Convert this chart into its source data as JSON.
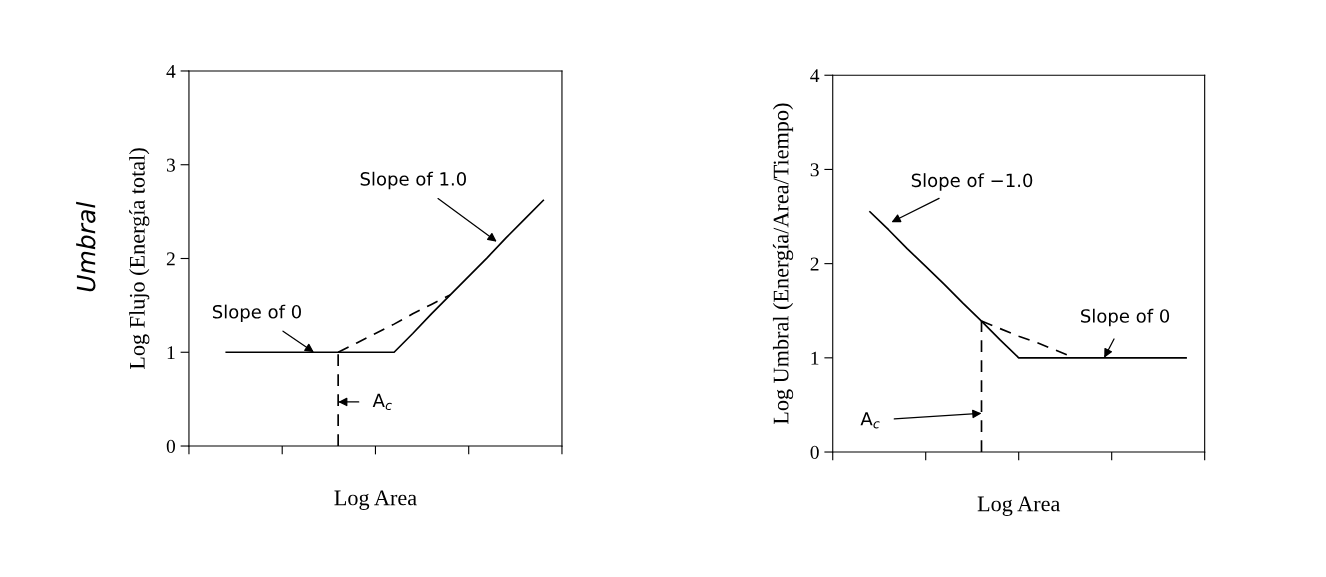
{
  "chart_data": [
    {
      "type": "line",
      "xlabel": "Log Area",
      "ylabel": "Log Flujo (Energía total)",
      "categories": [
        null,
        null,
        null,
        null,
        null,
        null,
        null,
        null,
        null,
        null,
        null,
        null,
        null,
        null,
        null,
        null,
        null,
        null,
        null,
        null,
        null
      ],
      "series": [
        {
          "color": "#000000",
          "line_style": "solid",
          "values": [
            null,
            null,
            1,
            1,
            1,
            1,
            1,
            1,
            1,
            1,
            1,
            1,
            1.2,
            1.41,
            1.61,
            1.81,
            2.01,
            2.22,
            2.42,
            2.62,
            null
          ]
        },
        {
          "color": "#000000",
          "line_style": "dashed",
          "values": [
            null,
            null,
            null,
            null,
            null,
            null,
            null,
            null,
            1,
            1.1,
            1.2,
            1.3,
            1.41,
            1.51,
            1.61,
            null,
            null,
            null,
            null,
            null,
            null
          ],
          "errors": [
            null,
            null,
            null,
            null,
            null,
            null,
            null,
            null,
            [
              0,
              1
            ],
            null,
            null,
            null,
            null,
            null,
            null,
            null,
            null,
            null,
            null,
            null,
            null
          ]
        }
      ],
      "ylim": [
        0,
        4
      ],
      "yticks": [
        0,
        1,
        2,
        3,
        4
      ],
      "annotations": [
        {
          "text": "Slope of 0",
          "y": 1
        },
        "Slope of 1.0",
        "A$_{c}$",
        "Umbral"
      ]
    },
    {
      "type": "line",
      "xlabel": "Log Area",
      "ylabel": "Log Umbral (Energía/Area/Tiempo)",
      "categories": [
        null,
        null,
        null,
        null,
        null,
        null,
        null,
        null,
        null,
        null,
        null,
        null,
        null,
        null,
        null,
        null,
        null,
        null,
        null,
        null,
        null
      ],
      "series": [
        {
          "color": "#000000",
          "line_style": "solid",
          "values": [
            null,
            null,
            2.55,
            2.36,
            2.16,
            1.97,
            1.78,
            1.58,
            1.39,
            1.19,
            1,
            1,
            1,
            1,
            1,
            1,
            1,
            1,
            1,
            1,
            null
          ]
        },
        {
          "color": "#000000",
          "line_style": "dashed",
          "values": [
            null,
            null,
            null,
            null,
            null,
            null,
            null,
            null,
            1.39,
            1.31,
            1.23,
            1.16,
            1.08,
            1,
            null,
            null,
            null,
            null,
            null,
            null,
            null
          ],
          "errors": [
            null,
            null,
            null,
            null,
            null,
            null,
            null,
            null,
            [
              0,
              1.39
            ],
            null,
            null,
            null,
            null,
            null,
            null,
            null,
            null,
            null,
            null,
            null,
            null
          ]
        }
      ],
      "ylim": [
        0,
        4
      ],
      "yticks": [
        0,
        1,
        2,
        3,
        4
      ],
      "annotations": [
        "Slope of −1.0",
        {
          "text": "Slope of 0",
          "y": 1.0
        },
        "A$_{c}$"
      ]
    }
  ]
}
